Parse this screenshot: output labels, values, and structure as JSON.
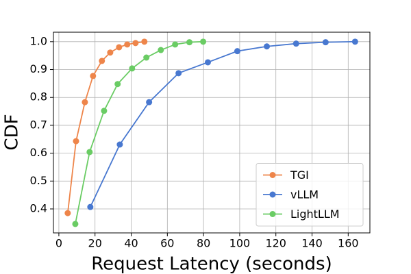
{
  "chart_data": {
    "type": "line",
    "xlabel": "Request Latency (seconds)",
    "ylabel": "CDF",
    "xlim": [
      -3,
      172
    ],
    "ylim": [
      0.314,
      1.034
    ],
    "xticks": [
      0,
      20,
      40,
      60,
      80,
      100,
      120,
      140,
      160
    ],
    "yticks": [
      0.4,
      0.5,
      0.6,
      0.7,
      0.8,
      0.9,
      {
        "value": 1,
        "label": "1.0"
      }
    ],
    "grid": true,
    "legend": "lower right",
    "series": [
      {
        "name": "TGI",
        "color": "#ee854a",
        "x": [
          4.9,
          9.5,
          14.4,
          18.9,
          23.8,
          28.4,
          33.3,
          37.8,
          42.4,
          47.3
        ],
        "values": [
          0.385,
          0.643,
          0.783,
          0.877,
          0.931,
          0.961,
          0.98,
          0.99,
          0.995,
          1.0
        ]
      },
      {
        "name": "vLLM",
        "color": "#4878d0",
        "x": [
          17.4,
          33.7,
          49.9,
          66.2,
          82.4,
          98.7,
          115,
          131.2,
          147.5,
          163.8
        ],
        "values": [
          0.407,
          0.631,
          0.783,
          0.887,
          0.926,
          0.966,
          0.983,
          0.993,
          0.998,
          1.0
        ]
      },
      {
        "name": "LightLLM",
        "color": "#6acc64",
        "x": [
          9.1,
          17,
          25,
          32.5,
          40.5,
          48.4,
          56.4,
          64.3,
          72.2,
          79.8
        ],
        "values": [
          0.346,
          0.604,
          0.752,
          0.848,
          0.904,
          0.943,
          0.97,
          0.99,
          0.998,
          1.0
        ]
      }
    ]
  }
}
